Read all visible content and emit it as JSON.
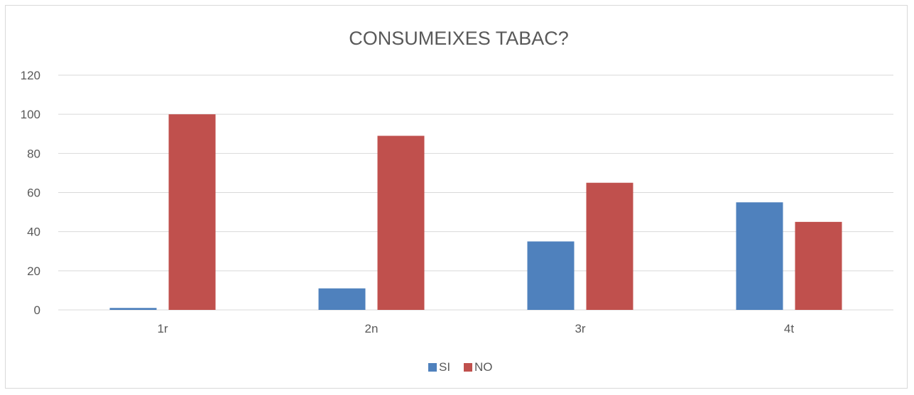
{
  "chart_data": {
    "type": "bar",
    "title": "CONSUMEIXES TABAC?",
    "xlabel": "",
    "ylabel": "",
    "categories": [
      "1r",
      "2n",
      "3r",
      "4t"
    ],
    "series": [
      {
        "name": "SI",
        "values": [
          1,
          11,
          35,
          55
        ],
        "color": "#4f81bd"
      },
      {
        "name": "NO",
        "values": [
          100,
          89,
          65,
          45
        ],
        "color": "#c0504d"
      }
    ],
    "ylim": [
      0,
      120
    ],
    "yticks": [
      "0",
      "20",
      "40",
      "60",
      "80",
      "100",
      "120"
    ],
    "grid": true,
    "legend_position": "bottom"
  }
}
